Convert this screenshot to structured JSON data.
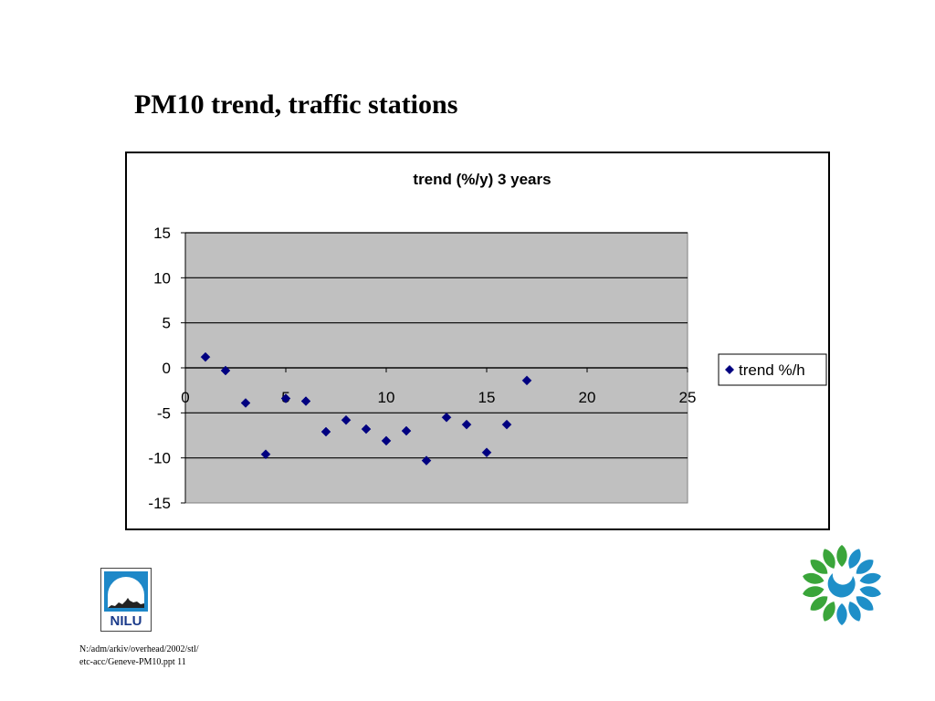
{
  "slide": {
    "title": "PM10 trend, traffic stations"
  },
  "footer": {
    "line1": "N:/adm/arkiv/overhead/2002/stl/",
    "line2": "etc-acc/Geneve-PM10.ppt 11"
  },
  "logos": {
    "nilu_text": "NILU",
    "nilu_icon": "nilu-logo-icon",
    "eea_icon": "eea-logo-icon"
  },
  "chart_data": {
    "type": "scatter",
    "title": "trend (%/y) 3 years",
    "xlabel": "",
    "ylabel": "",
    "xlim": [
      0,
      25
    ],
    "ylim": [
      -15,
      15
    ],
    "x_ticks": [
      0,
      5,
      10,
      15,
      20,
      25
    ],
    "y_ticks": [
      15,
      10,
      5,
      0,
      -5,
      -10,
      -15
    ],
    "grid": "horizontal",
    "legend_position": "right",
    "plot_background": "#c0c0c0",
    "marker_color": "#000080",
    "series": [
      {
        "name": "trend %/h",
        "x": [
          1,
          2,
          3,
          4,
          5,
          6,
          7,
          8,
          9,
          10,
          11,
          12,
          13,
          14,
          15,
          16,
          17
        ],
        "y": [
          1.2,
          -0.3,
          -3.9,
          -9.6,
          -3.4,
          -3.7,
          -7.1,
          -5.8,
          -6.8,
          -8.1,
          -7.0,
          -10.3,
          -5.5,
          -6.3,
          -9.4,
          -6.3,
          -1.4
        ]
      }
    ]
  }
}
